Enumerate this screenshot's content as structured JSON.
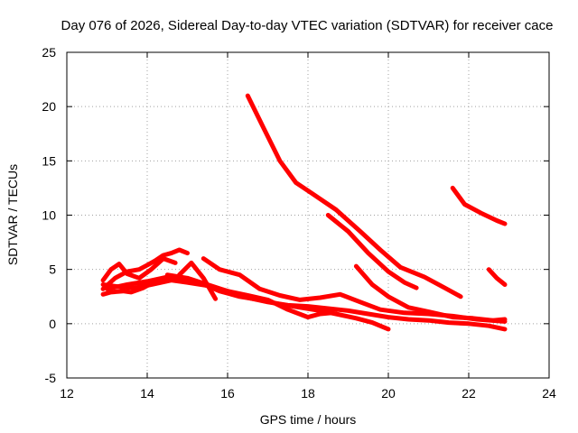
{
  "chart_data": {
    "type": "line",
    "title": "Day 076 of 2026, Sidereal Day-to-day VTEC variation (SDTVAR) for receiver cace",
    "xlabel": "GPS time / hours",
    "ylabel": "SDTVAR / TECUs",
    "xlim": [
      12,
      24
    ],
    "ylim": [
      -5,
      25
    ],
    "xticks": [
      12,
      14,
      16,
      18,
      20,
      22,
      24
    ],
    "yticks": [
      -5,
      0,
      5,
      10,
      15,
      20,
      25
    ],
    "xtick_labels": [
      "12",
      "14",
      "16",
      "18",
      "20",
      "22",
      "24"
    ],
    "ytick_labels": [
      "-5",
      "0",
      "5",
      "10",
      "15",
      "20",
      "25"
    ],
    "grid": true,
    "series_color": "#ff0000",
    "series": [
      {
        "name": "trace-1",
        "x": [
          16.5,
          16.9,
          17.3,
          17.7,
          18.1,
          18.7,
          19.3,
          19.8,
          20.3,
          20.9,
          21.4,
          21.8
        ],
        "y": [
          21,
          18,
          15,
          13,
          12,
          10.5,
          8.5,
          6.8,
          5.2,
          4.3,
          3.3,
          2.5
        ]
      },
      {
        "name": "trace-2",
        "x": [
          18.5,
          19.0,
          19.5,
          20.0,
          20.4,
          20.7
        ],
        "y": [
          10,
          8.5,
          6.5,
          4.8,
          3.8,
          3.3
        ]
      },
      {
        "name": "trace-3",
        "x": [
          21.6,
          21.9,
          22.3,
          22.7,
          22.9
        ],
        "y": [
          12.5,
          11,
          10.2,
          9.5,
          9.2
        ]
      },
      {
        "name": "trace-4",
        "x": [
          22.5,
          22.7,
          22.9
        ],
        "y": [
          5,
          4.2,
          3.6
        ]
      },
      {
        "name": "trace-5",
        "x": [
          19.2,
          19.6,
          20.0,
          20.5,
          21.0,
          21.6,
          22.1,
          22.6,
          22.9
        ],
        "y": [
          5.3,
          3.6,
          2.5,
          1.5,
          1.1,
          0.6,
          0.5,
          0.3,
          0.4
        ]
      },
      {
        "name": "trace-6",
        "x": [
          15.4,
          15.8,
          16.3,
          16.8,
          17.3,
          17.8,
          18.3,
          18.8,
          19.3,
          19.8,
          20.4,
          21.0,
          21.6,
          22.2,
          22.9
        ],
        "y": [
          6,
          5,
          4.5,
          3.2,
          2.6,
          2.2,
          2.4,
          2.7,
          2.0,
          1.3,
          1.0,
          0.9,
          0.7,
          0.4,
          0.2
        ]
      },
      {
        "name": "trace-7",
        "x": [
          14.5,
          15.0,
          15.5,
          16.0,
          16.5,
          17.0,
          17.5,
          18.0,
          18.5,
          19.0,
          19.5,
          20.0,
          20.5,
          21.0,
          21.5,
          22.0,
          22.5,
          22.9
        ],
        "y": [
          4.5,
          4.2,
          3.6,
          3.0,
          2.4,
          2.0,
          1.7,
          1.6,
          1.4,
          1.2,
          0.9,
          0.6,
          0.4,
          0.3,
          0.1,
          0.0,
          -0.2,
          -0.5
        ]
      },
      {
        "name": "trace-8",
        "x": [
          13.8,
          14.3,
          14.8,
          15.3,
          15.8,
          16.3,
          16.8,
          17.3,
          17.8,
          18.3,
          18.7,
          19.2,
          19.6,
          20.0
        ],
        "y": [
          3.5,
          4.0,
          4.3,
          3.8,
          3.0,
          2.5,
          2.2,
          1.8,
          1.5,
          1.2,
          0.9,
          0.5,
          0.1,
          -0.5
        ]
      },
      {
        "name": "trace-9",
        "x": [
          13.0,
          13.5,
          14.0,
          14.5,
          15.0,
          15.5,
          16.0,
          16.5,
          17.0,
          17.5,
          18.0,
          18.3,
          18.6
        ],
        "y": [
          3.2,
          3.6,
          3.9,
          4.3,
          4.0,
          3.5,
          3.0,
          2.6,
          2.2,
          1.3,
          0.6,
          0.9,
          1.0
        ]
      },
      {
        "name": "trace-10",
        "x": [
          12.9,
          13.2,
          13.5,
          13.8,
          14.0,
          14.2,
          14.4,
          14.6,
          14.8,
          15.0
        ],
        "y": [
          3.2,
          4.2,
          4.8,
          5.0,
          5.4,
          5.8,
          6.3,
          6.5,
          6.8,
          6.5
        ]
      },
      {
        "name": "trace-11",
        "x": [
          12.9,
          13.1,
          13.3,
          13.5,
          13.8,
          14.1,
          14.4,
          14.7
        ],
        "y": [
          4.0,
          5.0,
          5.5,
          4.6,
          4.2,
          5.0,
          6.0,
          5.6
        ]
      },
      {
        "name": "trace-12",
        "x": [
          12.9,
          13.1,
          13.4,
          13.6,
          13.9,
          14.2,
          14.5
        ],
        "y": [
          2.7,
          2.9,
          3.0,
          2.9,
          3.3,
          3.9,
          4.3
        ]
      },
      {
        "name": "trace-13",
        "x": [
          14.8,
          15.1,
          15.4,
          15.7
        ],
        "y": [
          4.5,
          5.6,
          4.2,
          2.3
        ]
      },
      {
        "name": "trace-14",
        "x": [
          12.9,
          13.3,
          13.7,
          14.1,
          14.6,
          15.0,
          15.5
        ],
        "y": [
          3.6,
          3.4,
          3.3,
          3.6,
          4.0,
          3.8,
          3.5
        ]
      }
    ]
  }
}
